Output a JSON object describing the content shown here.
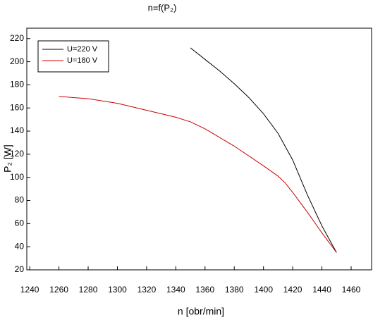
{
  "chart_data": {
    "type": "line",
    "title": "n=f(P₂)",
    "x_label": "n [obr/min]",
    "y_label": "P₂ [W]",
    "xlim": [
      1238,
      1474
    ],
    "ylim": [
      20,
      229
    ],
    "xticks": [
      1240,
      1260,
      1280,
      1300,
      1320,
      1340,
      1360,
      1380,
      1400,
      1420,
      1440,
      1460
    ],
    "yticks": [
      20,
      40,
      60,
      80,
      100,
      120,
      140,
      160,
      180,
      200,
      220
    ],
    "grid": false,
    "legend": "upper left",
    "series": [
      {
        "name": "U=220 V",
        "color": "#000000",
        "x": [
          1350,
          1360,
          1370,
          1380,
          1390,
          1400,
          1410,
          1420,
          1430,
          1440,
          1450
        ],
        "values": [
          212,
          202,
          192,
          181,
          169,
          155,
          138,
          115,
          85,
          58,
          35
        ]
      },
      {
        "name": "U=180 V",
        "color": "#cc0000",
        "x": [
          1260,
          1280,
          1300,
          1320,
          1340,
          1350,
          1360,
          1380,
          1400,
          1410,
          1415,
          1420,
          1430,
          1440,
          1450
        ],
        "values": [
          170,
          168,
          164,
          158,
          152,
          148,
          142,
          127,
          110,
          101,
          95,
          87,
          70,
          52,
          35
        ]
      }
    ]
  }
}
